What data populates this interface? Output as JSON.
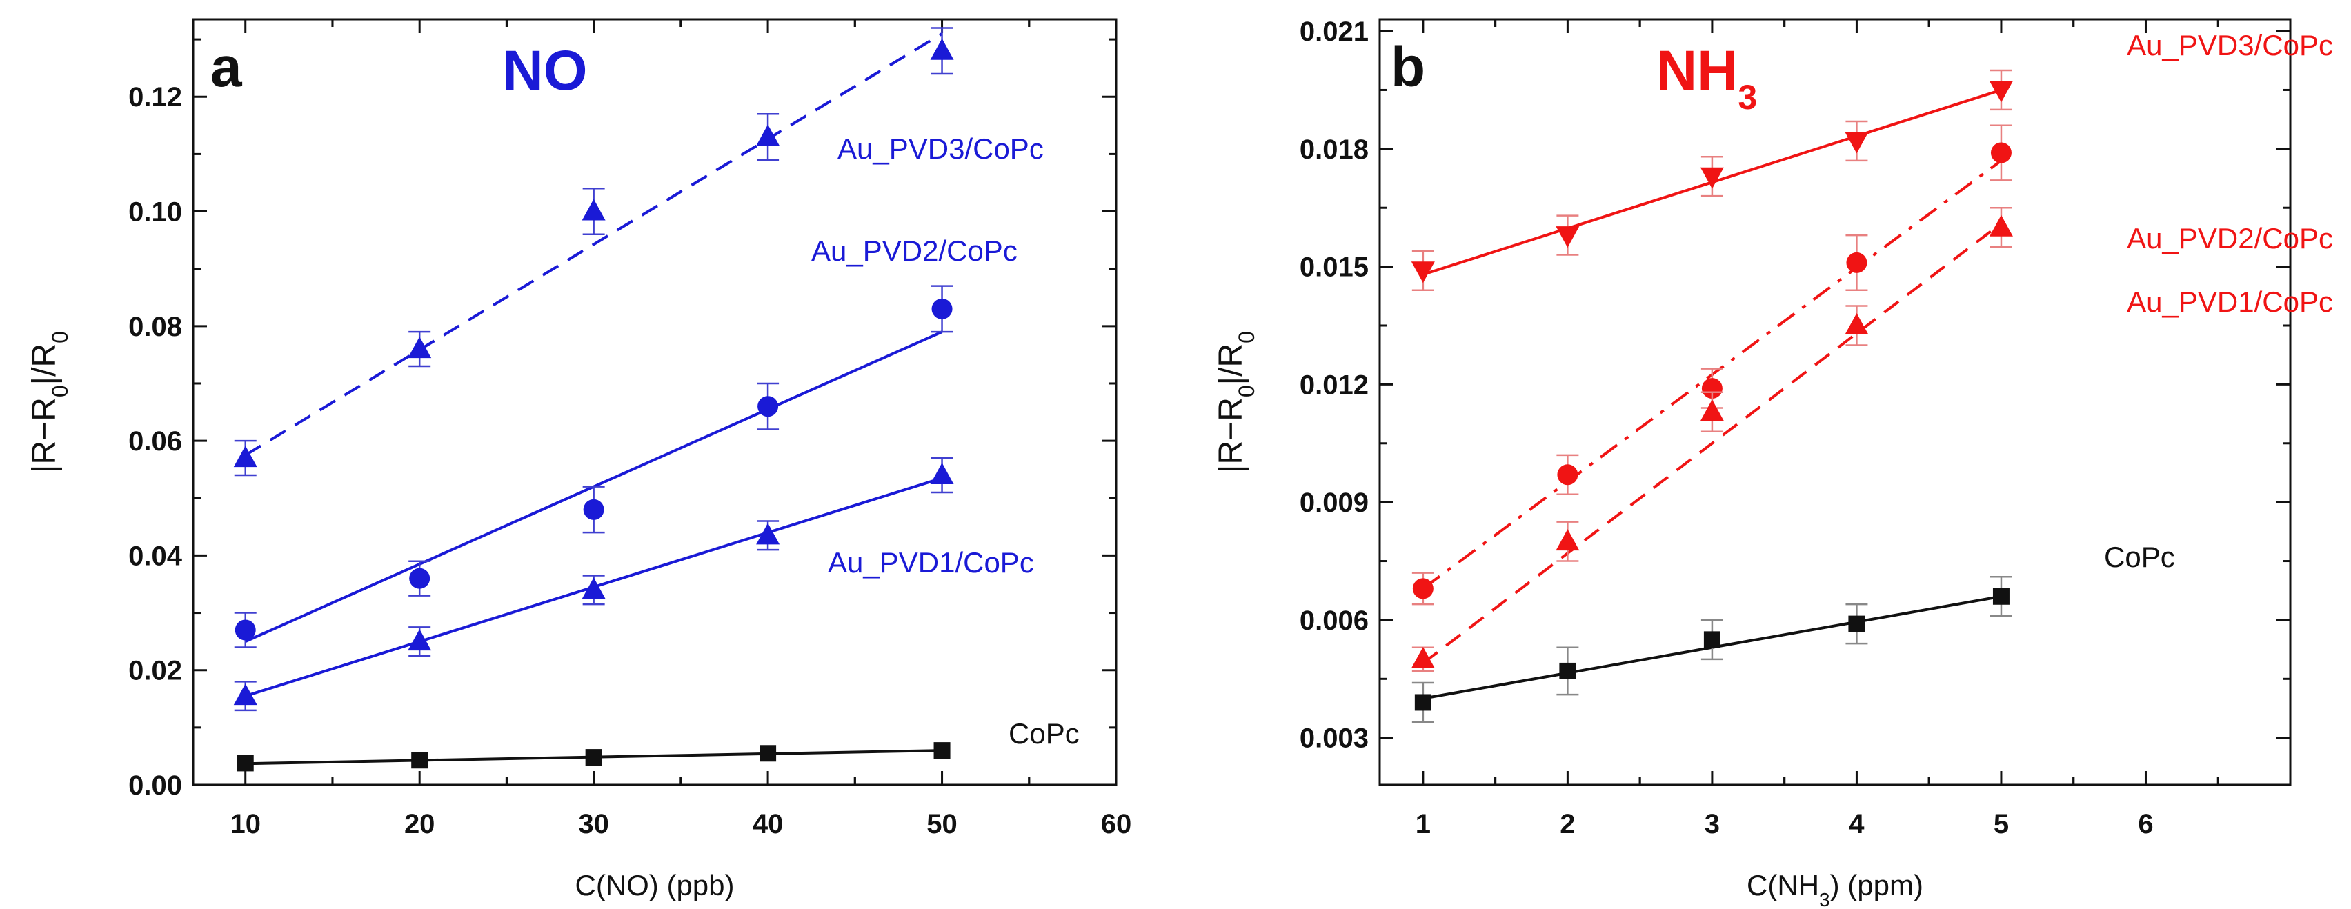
{
  "chart_data": [
    {
      "type": "scatter",
      "panel_letter": "a",
      "title": "NO",
      "xlabel": "C(NO) (ppb)",
      "ylabel": "|R−R0|/R0",
      "xlim": [
        7,
        60
      ],
      "ylim": [
        0,
        0.1335
      ],
      "xticks": [
        10,
        20,
        30,
        40,
        50,
        60
      ],
      "yticks": [
        0.0,
        0.02,
        0.04,
        0.06,
        0.08,
        0.1,
        0.12
      ],
      "xtick_labels": [
        "10",
        "20",
        "30",
        "40",
        "50",
        "60"
      ],
      "ytick_labels": [
        "0.00",
        "0.02",
        "0.04",
        "0.06",
        "0.08",
        "0.10",
        "0.12"
      ],
      "title_color": "#1a1ad6",
      "x": [
        10,
        20,
        30,
        40,
        50
      ],
      "series": [
        {
          "name": "Au_PVD3/CoPc",
          "marker": "triangle-up",
          "color": "#1a1ad6",
          "line": "dashed",
          "values": [
            0.057,
            0.076,
            0.1,
            0.113,
            0.128
          ],
          "errors": [
            0.003,
            0.003,
            0.004,
            0.004,
            0.004
          ],
          "fit": [
            0.0575,
            0.131
          ]
        },
        {
          "name": "Au_PVD2/CoPc",
          "marker": "circle",
          "color": "#1a1ad6",
          "line": "solid",
          "values": [
            0.027,
            0.036,
            0.048,
            0.066,
            0.083
          ],
          "errors": [
            0.003,
            0.003,
            0.004,
            0.004,
            0.004
          ],
          "fit": [
            0.025,
            0.079
          ]
        },
        {
          "name": "Au_PVD1/CoPc",
          "marker": "triangle-up",
          "color": "#1a1ad6",
          "line": "solid",
          "values": [
            0.0155,
            0.025,
            0.034,
            0.0435,
            0.054
          ],
          "errors": [
            0.0025,
            0.0025,
            0.0025,
            0.0025,
            0.003
          ],
          "fit": [
            0.0155,
            0.0535
          ]
        },
        {
          "name": "CoPc",
          "marker": "square",
          "color": "#111111",
          "line": "solid",
          "values": [
            0.0038,
            0.0043,
            0.0048,
            0.0055,
            0.006
          ],
          "errors": [
            0,
            0,
            0,
            0,
            0
          ],
          "fit": [
            0.0037,
            0.006
          ]
        }
      ]
    },
    {
      "type": "scatter",
      "panel_letter": "b",
      "title": "NH3",
      "title_main": "NH",
      "title_sub": "3",
      "xlabel": "C(NH3) (ppm)",
      "xlabel_pre": "C(NH",
      "xlabel_sub": "3",
      "xlabel_post": ") (ppm)",
      "ylabel": "|R−R0|/R0",
      "xlim": [
        0.7,
        7
      ],
      "ylim": [
        0.0018,
        0.0213
      ],
      "xticks": [
        1,
        2,
        3,
        4,
        5,
        6
      ],
      "yticks": [
        0.003,
        0.006,
        0.009,
        0.012,
        0.015,
        0.018,
        0.021
      ],
      "xtick_labels": [
        "1",
        "2",
        "3",
        "4",
        "5",
        "6"
      ],
      "ytick_labels": [
        "0.003",
        "0.006",
        "0.009",
        "0.012",
        "0.015",
        "0.018",
        "0.021"
      ],
      "title_color": "#f01414",
      "x": [
        1,
        2,
        3,
        4,
        5
      ],
      "series": [
        {
          "name": "Au_PVD3/CoPc",
          "marker": "triangle-down",
          "color": "#f01414",
          "line": "solid",
          "values": [
            0.0149,
            0.0158,
            0.0173,
            0.0182,
            0.0195
          ],
          "errors": [
            0.0005,
            0.0005,
            0.0005,
            0.0005,
            0.0005
          ],
          "fit": [
            0.0148,
            0.0195
          ]
        },
        {
          "name": "Au_PVD2/CoPc",
          "marker": "circle",
          "color": "#f01414",
          "line": "dashdot",
          "values": [
            0.0068,
            0.0097,
            0.0119,
            0.0151,
            0.0179
          ],
          "errors": [
            0.0004,
            0.0005,
            0.0005,
            0.0007,
            0.0007
          ],
          "fit": [
            0.0068,
            0.0177
          ]
        },
        {
          "name": "Au_PVD1/CoPc",
          "marker": "triangle-up",
          "color": "#f01414",
          "line": "dashed",
          "values": [
            0.005,
            0.008,
            0.0113,
            0.0135,
            0.016
          ],
          "errors": [
            0.0003,
            0.0005,
            0.0005,
            0.0005,
            0.0005
          ],
          "fit": [
            0.0049,
            0.0161
          ]
        },
        {
          "name": "CoPc",
          "marker": "square",
          "color": "#111111",
          "line": "solid",
          "values": [
            0.0039,
            0.0047,
            0.0055,
            0.0059,
            0.0066
          ],
          "errors": [
            0.0005,
            0.0006,
            0.0005,
            0.0005,
            0.0005
          ],
          "fit": [
            0.004,
            0.0066
          ]
        }
      ]
    }
  ]
}
